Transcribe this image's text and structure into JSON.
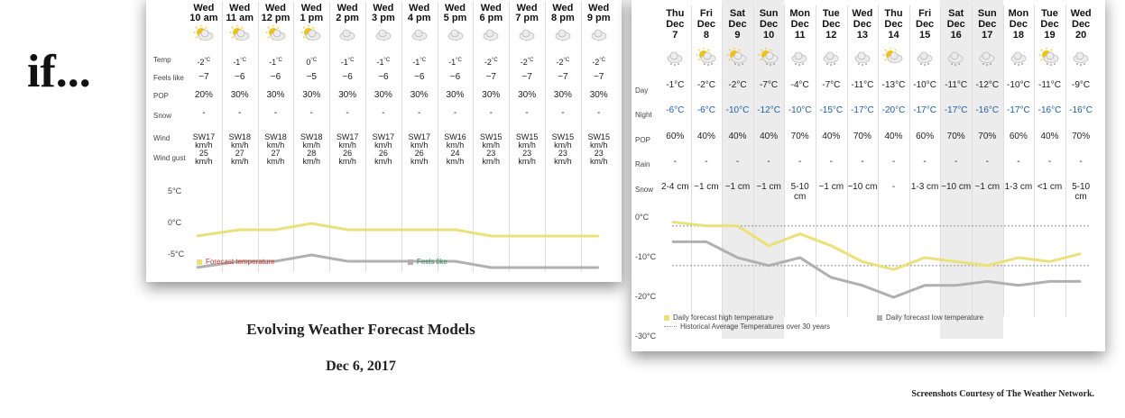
{
  "headline": "if...",
  "title": "Evolving Weather Forecast Models",
  "date": "Dec 6, 2017",
  "credit": "Screenshots Courtesy of The Weather Network.",
  "colors": {
    "high_temp": "#ece07a",
    "low_temp": "#b0b0b0",
    "night_temp": "#1f5fa8",
    "hist_avg": "#999999"
  },
  "hourly": {
    "row_labels": [
      "Temp",
      "Feels like",
      "POP",
      "Snow",
      "Wind",
      "Wind gust"
    ],
    "columns": [
      {
        "day": "Wed",
        "time": "10 am",
        "icon": "sun-cloud-icon",
        "temp": "-2",
        "feels": "−7",
        "pop": "20%",
        "snow": "-",
        "wind": "SW17",
        "gust": "25"
      },
      {
        "day": "Wed",
        "time": "11 am",
        "icon": "sun-cloud-icon",
        "temp": "-1",
        "feels": "−6",
        "pop": "30%",
        "snow": "-",
        "wind": "SW18",
        "gust": "27"
      },
      {
        "day": "Wed",
        "time": "12 pm",
        "icon": "sun-cloud-icon",
        "temp": "-1",
        "feels": "−6",
        "pop": "30%",
        "snow": "-",
        "wind": "SW18",
        "gust": "27"
      },
      {
        "day": "Wed",
        "time": "1 pm",
        "icon": "sun-cloud-icon",
        "temp": "0",
        "feels": "−5",
        "pop": "30%",
        "snow": "-",
        "wind": "SW18",
        "gust": "28"
      },
      {
        "day": "Wed",
        "time": "2 pm",
        "icon": "cloud-icon",
        "temp": "-1",
        "feels": "−6",
        "pop": "30%",
        "snow": "-",
        "wind": "SW17",
        "gust": "26"
      },
      {
        "day": "Wed",
        "time": "3 pm",
        "icon": "cloud-icon",
        "temp": "-1",
        "feels": "−6",
        "pop": "30%",
        "snow": "-",
        "wind": "SW17",
        "gust": "26"
      },
      {
        "day": "Wed",
        "time": "4 pm",
        "icon": "cloud-icon",
        "temp": "-1",
        "feels": "−6",
        "pop": "30%",
        "snow": "-",
        "wind": "SW17",
        "gust": "26"
      },
      {
        "day": "Wed",
        "time": "5 pm",
        "icon": "cloud-icon",
        "temp": "-1",
        "feels": "−6",
        "pop": "30%",
        "snow": "-",
        "wind": "SW16",
        "gust": "24"
      },
      {
        "day": "Wed",
        "time": "6 pm",
        "icon": "cloud-icon",
        "temp": "-2",
        "feels": "−7",
        "pop": "30%",
        "snow": "-",
        "wind": "SW15",
        "gust": "23"
      },
      {
        "day": "Wed",
        "time": "7 pm",
        "icon": "cloud-icon",
        "temp": "-2",
        "feels": "−7",
        "pop": "30%",
        "snow": "-",
        "wind": "SW15",
        "gust": "23"
      },
      {
        "day": "Wed",
        "time": "8 pm",
        "icon": "cloud-icon",
        "temp": "-2",
        "feels": "−7",
        "pop": "30%",
        "snow": "-",
        "wind": "SW15",
        "gust": "23"
      },
      {
        "day": "Wed",
        "time": "9 pm",
        "icon": "cloud-icon",
        "temp": "-2",
        "feels": "−7",
        "pop": "30%",
        "snow": "-",
        "wind": "SW15",
        "gust": "23"
      }
    ],
    "temp_unit": "°C",
    "wind_unit": "km/h",
    "chart": {
      "y_ticks": [
        "5°C",
        "0°C",
        "-5°C"
      ],
      "y_values": [
        5,
        0,
        -5
      ],
      "legend_forecast": "Forecast temperature",
      "legend_feels": "Feels like",
      "forecast_series": [
        -2,
        -1,
        -1,
        0,
        -1,
        -1,
        -1,
        -1,
        -2,
        -2,
        -2,
        -2
      ],
      "feels_series": [
        -7,
        -6,
        -6,
        -5,
        -6,
        -6,
        -6,
        -6,
        -7,
        -7,
        -7,
        -7
      ]
    }
  },
  "daily": {
    "row_labels": [
      "Day",
      "Night",
      "POP",
      "Rain",
      "Snow"
    ],
    "columns": [
      {
        "dow": "Thu",
        "mon": "Dec",
        "dd": "7",
        "icon": "snow-icon",
        "day": "-1°C",
        "night": "-6°C",
        "pop": "60%",
        "rain": "-",
        "snow": "2-4 cm",
        "weekend": false
      },
      {
        "dow": "Fri",
        "mon": "Dec",
        "dd": "8",
        "icon": "sun-snow-icon",
        "day": "-2°C",
        "night": "-6°C",
        "pop": "40%",
        "rain": "-",
        "snow": "~1 cm",
        "weekend": false
      },
      {
        "dow": "Sat",
        "mon": "Dec",
        "dd": "9",
        "icon": "sun-snow-icon",
        "day": "-2°C",
        "night": "-10°C",
        "pop": "40%",
        "rain": "-",
        "snow": "~1 cm",
        "weekend": true
      },
      {
        "dow": "Sun",
        "mon": "Dec",
        "dd": "10",
        "icon": "sun-snow-icon",
        "day": "-7°C",
        "night": "-12°C",
        "pop": "40%",
        "rain": "-",
        "snow": "~1 cm",
        "weekend": true
      },
      {
        "dow": "Mon",
        "mon": "Dec",
        "dd": "11",
        "icon": "snow-icon",
        "day": "-4°C",
        "night": "-10°C",
        "pop": "70%",
        "rain": "-",
        "snow": "5-10 cm",
        "weekend": false
      },
      {
        "dow": "Tue",
        "mon": "Dec",
        "dd": "12",
        "icon": "snow-icon",
        "day": "-7°C",
        "night": "-15°C",
        "pop": "40%",
        "rain": "-",
        "snow": "~1 cm",
        "weekend": false
      },
      {
        "dow": "Wed",
        "mon": "Dec",
        "dd": "13",
        "icon": "snow-icon",
        "day": "-11°C",
        "night": "-17°C",
        "pop": "70%",
        "rain": "-",
        "snow": "~10 cm",
        "weekend": false
      },
      {
        "dow": "Thu",
        "mon": "Dec",
        "dd": "14",
        "icon": "sun-cloud-icon",
        "day": "-13°C",
        "night": "-20°C",
        "pop": "40%",
        "rain": "-",
        "snow": "-",
        "weekend": false
      },
      {
        "dow": "Fri",
        "mon": "Dec",
        "dd": "15",
        "icon": "snow-icon",
        "day": "-10°C",
        "night": "-17°C",
        "pop": "60%",
        "rain": "-",
        "snow": "1-3 cm",
        "weekend": false
      },
      {
        "dow": "Sat",
        "mon": "Dec",
        "dd": "16",
        "icon": "snow-icon",
        "day": "-11°C",
        "night": "-17°C",
        "pop": "70%",
        "rain": "-",
        "snow": "~10 cm",
        "weekend": true
      },
      {
        "dow": "Sun",
        "mon": "Dec",
        "dd": "17",
        "icon": "snow-icon",
        "day": "-12°C",
        "night": "-16°C",
        "pop": "70%",
        "rain": "-",
        "snow": "~1 cm",
        "weekend": true
      },
      {
        "dow": "Mon",
        "mon": "Dec",
        "dd": "18",
        "icon": "snow-icon",
        "day": "-10°C",
        "night": "-17°C",
        "pop": "60%",
        "rain": "-",
        "snow": "1-3 cm",
        "weekend": false
      },
      {
        "dow": "Tue",
        "mon": "Dec",
        "dd": "19",
        "icon": "sun-snow-icon",
        "day": "-11°C",
        "night": "-16°C",
        "pop": "40%",
        "rain": "-",
        "snow": "<1 cm",
        "weekend": false
      },
      {
        "dow": "Wed",
        "mon": "Dec",
        "dd": "20",
        "icon": "snow-icon",
        "day": "-9°C",
        "night": "-16°C",
        "pop": "70%",
        "rain": "-",
        "snow": "5-10 cm",
        "weekend": false
      }
    ],
    "chart": {
      "y_ticks": [
        "0°C",
        "-10°C",
        "-20°C",
        "-30°C"
      ],
      "y_values": [
        0,
        -10,
        -20,
        -30
      ],
      "legend_high": "Daily forecast high temperature",
      "legend_low": "Daily forecast low temperature",
      "legend_hist": "Historical Average Temperatures over 30 years",
      "high_series": [
        -1,
        -2,
        -2,
        -7,
        -4,
        -7,
        -11,
        -13,
        -10,
        -11,
        -12,
        -10,
        -11,
        -9
      ],
      "low_series": [
        -6,
        -6,
        -10,
        -12,
        -10,
        -15,
        -17,
        -20,
        -17,
        -17,
        -16,
        -17,
        -16,
        -16
      ],
      "hist_high": -2,
      "hist_low": -12
    }
  }
}
